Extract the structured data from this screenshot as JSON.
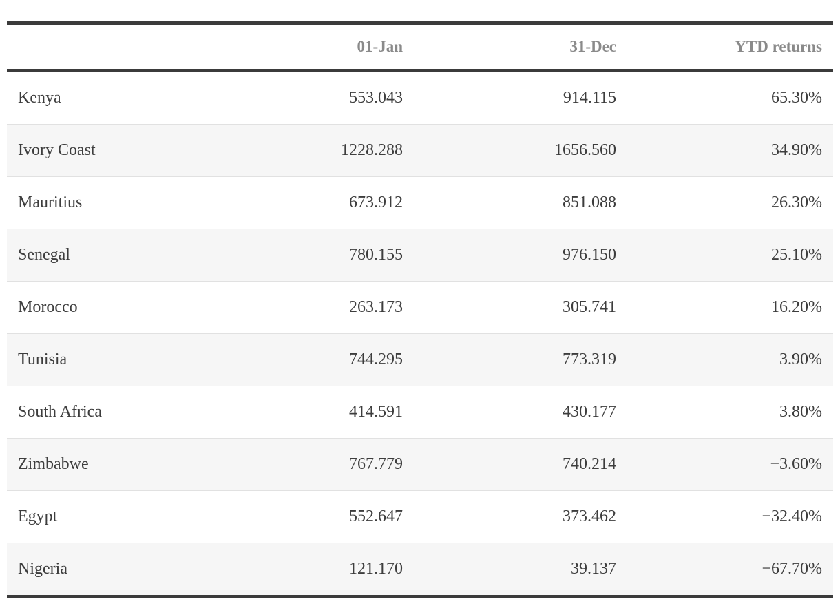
{
  "colors": {
    "rule_dark": "#3b3b3b",
    "header_text": "#8a8a8a",
    "body_text": "#3d3d3d",
    "row_stripe": "#f6f6f6",
    "row_separator": "#e1e1e1",
    "background": "#ffffff"
  },
  "chart_data": {
    "type": "table",
    "columns": [
      "",
      "01-Jan",
      "31-Dec",
      "YTD returns"
    ],
    "rows": [
      [
        "Kenya",
        "553.043",
        "914.115",
        "65.30%"
      ],
      [
        "Ivory Coast",
        "1228.288",
        "1656.560",
        "34.90%"
      ],
      [
        "Mauritius",
        "673.912",
        "851.088",
        "26.30%"
      ],
      [
        "Senegal",
        "780.155",
        "976.150",
        "25.10%"
      ],
      [
        "Morocco",
        "263.173",
        "305.741",
        "16.20%"
      ],
      [
        "Tunisia",
        "744.295",
        "773.319",
        "3.90%"
      ],
      [
        "South Africa",
        "414.591",
        "430.177",
        "3.80%"
      ],
      [
        "Zimbabwe",
        "767.779",
        "740.214",
        "−3.60%"
      ],
      [
        "Egypt",
        "552.647",
        "373.462",
        "−32.40%"
      ],
      [
        "Nigeria",
        "121.170",
        "39.137",
        "−67.70%"
      ]
    ],
    "values": {
      "jan01": [
        553.043,
        1228.288,
        673.912,
        780.155,
        263.173,
        744.295,
        414.591,
        767.779,
        552.647,
        121.17
      ],
      "dec31": [
        914.115,
        1656.56,
        851.088,
        976.15,
        305.741,
        773.319,
        430.177,
        740.214,
        373.462,
        39.137
      ],
      "ytd_returns_pct": [
        65.3,
        34.9,
        26.3,
        25.1,
        16.2,
        3.9,
        3.8,
        -3.6,
        -32.4,
        -67.7
      ]
    },
    "title": "",
    "legend": "none",
    "grid": "horizontal-rules"
  }
}
